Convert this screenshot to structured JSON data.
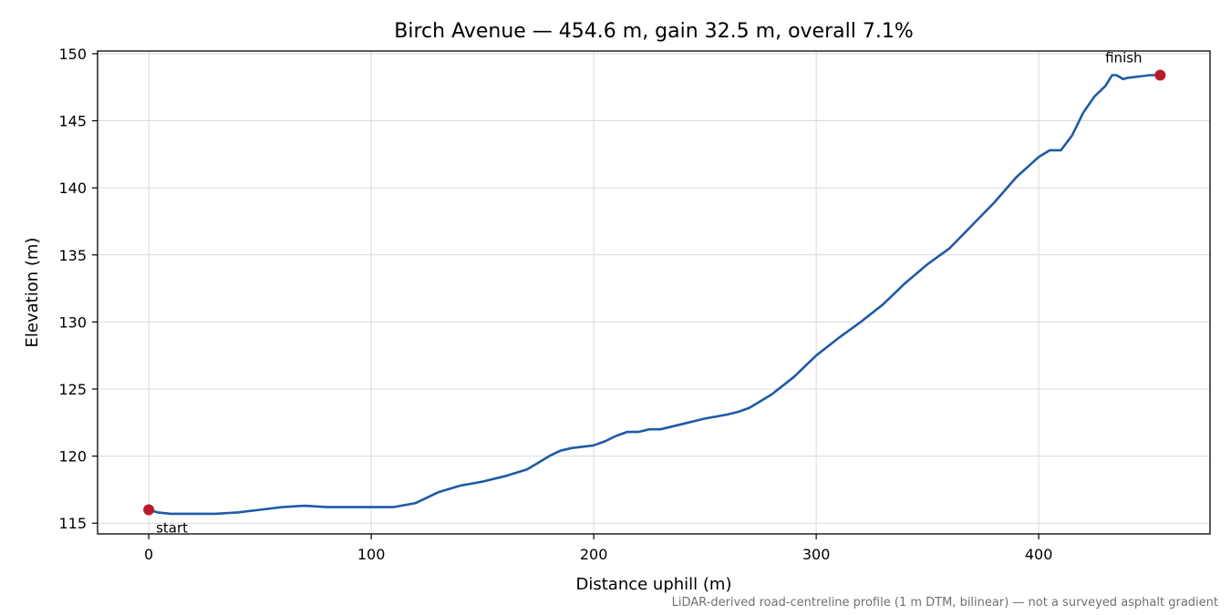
{
  "chart_data": {
    "type": "line",
    "title": "Birch Avenue — 454.6 m, gain 32.5 m, overall 7.1%",
    "xlabel": "Distance uphill (m)",
    "ylabel": "Elevation (m)",
    "xlim": [
      -23,
      477
    ],
    "ylim": [
      114.2,
      150.2
    ],
    "x_ticks": [
      0,
      100,
      200,
      300,
      400
    ],
    "y_ticks": [
      115,
      120,
      125,
      130,
      135,
      140,
      145,
      150
    ],
    "grid": true,
    "line_color": "#1f5aa6",
    "marker_color": "#b81c2c",
    "series": [
      {
        "x": [
          0,
          4,
          10,
          20,
          30,
          40,
          50,
          60,
          70,
          80,
          90,
          100,
          110,
          120,
          130,
          140,
          150,
          160,
          170,
          175,
          180,
          185,
          190,
          200,
          205,
          210,
          215,
          220,
          225,
          230,
          240,
          250,
          260,
          265,
          270,
          280,
          290,
          300,
          310,
          320,
          330,
          340,
          350,
          360,
          370,
          380,
          390,
          400,
          405,
          410,
          415,
          420,
          425,
          430,
          433,
          435,
          438,
          440,
          445,
          450,
          454.6
        ],
        "y": [
          116.0,
          115.8,
          115.7,
          115.7,
          115.7,
          115.8,
          116.0,
          116.2,
          116.3,
          116.2,
          116.2,
          116.2,
          116.2,
          116.5,
          117.3,
          117.8,
          118.1,
          118.5,
          119.0,
          119.5,
          120.0,
          120.4,
          120.6,
          120.8,
          121.1,
          121.5,
          121.8,
          121.8,
          122.0,
          122.0,
          122.4,
          122.8,
          123.1,
          123.3,
          123.6,
          124.6,
          125.9,
          127.5,
          128.8,
          130.0,
          131.3,
          132.9,
          134.3,
          135.5,
          137.2,
          138.9,
          140.8,
          142.3,
          142.8,
          142.8,
          143.9,
          145.6,
          146.8,
          147.6,
          148.4,
          148.4,
          148.1,
          148.2,
          148.3,
          148.4,
          148.4
        ]
      }
    ],
    "annotations": [
      {
        "text": "start",
        "x": 0,
        "y": 116.0
      },
      {
        "text": "finish",
        "x": 454.6,
        "y": 148.4
      }
    ],
    "caption": "LiDAR-derived road-centreline profile (1 m DTM, bilinear) — not a surveyed asphalt gradient"
  }
}
